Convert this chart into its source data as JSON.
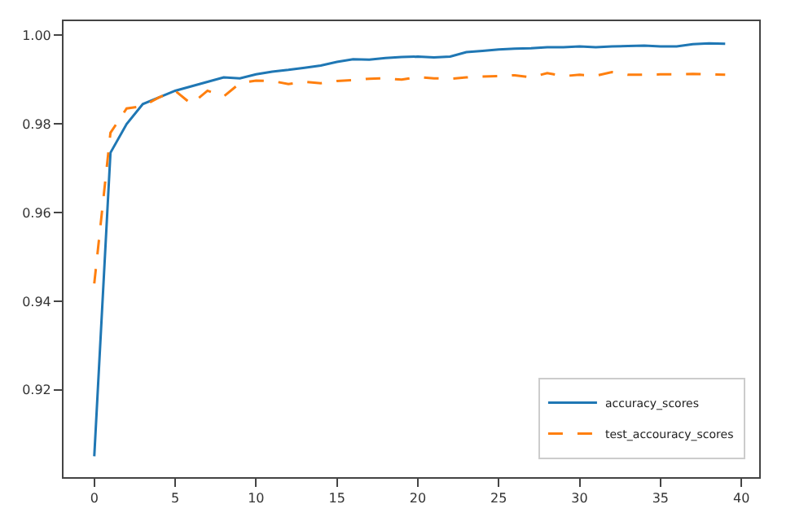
{
  "chart_data": {
    "type": "line",
    "x": [
      0,
      1,
      2,
      3,
      4,
      5,
      6,
      7,
      8,
      9,
      10,
      11,
      12,
      13,
      14,
      15,
      16,
      17,
      18,
      19,
      20,
      21,
      22,
      23,
      24,
      25,
      26,
      27,
      28,
      29,
      30,
      31,
      32,
      33,
      34,
      35,
      36,
      37,
      38,
      39
    ],
    "series": [
      {
        "name": "accuracy_scores",
        "color": "#1f77b4",
        "line_style": "solid",
        "values": [
          0.905,
          0.9735,
          0.98,
          0.9845,
          0.986,
          0.9875,
          0.9885,
          0.9895,
          0.9905,
          0.9903,
          0.9912,
          0.9918,
          0.9922,
          0.9927,
          0.9932,
          0.994,
          0.9946,
          0.9945,
          0.9949,
          0.9951,
          0.9952,
          0.995,
          0.9952,
          0.9962,
          0.9965,
          0.9968,
          0.997,
          0.9971,
          0.9973,
          0.9973,
          0.9975,
          0.9973,
          0.9975,
          0.9976,
          0.9977,
          0.9975,
          0.9975,
          0.998,
          0.9982,
          0.9981
        ]
      },
      {
        "name": "test_accouracy_scores",
        "color": "#ff7f0e",
        "line_style": "dashed",
        "values": [
          0.944,
          0.978,
          0.9835,
          0.984,
          0.986,
          0.9875,
          0.9845,
          0.9875,
          0.9862,
          0.9892,
          0.9898,
          0.9897,
          0.989,
          0.9895,
          0.9892,
          0.9897,
          0.9899,
          0.9902,
          0.9903,
          0.99,
          0.9906,
          0.9903,
          0.9902,
          0.9905,
          0.9907,
          0.9908,
          0.991,
          0.9905,
          0.9915,
          0.9908,
          0.9911,
          0.9909,
          0.9917,
          0.9911,
          0.9911,
          0.9912,
          0.9912,
          0.9913,
          0.9912,
          0.9911
        ]
      }
    ],
    "xlim": [
      -1.9,
      41.1
    ],
    "ylim": [
      0.9003,
      1.0032
    ],
    "xticks": [
      0,
      5,
      10,
      15,
      20,
      25,
      30,
      35,
      40
    ],
    "yticks": [
      {
        "value": 0.92,
        "label": "0.92"
      },
      {
        "value": 0.94,
        "label": "0.94"
      },
      {
        "value": 0.96,
        "label": "0.96"
      },
      {
        "value": 0.98,
        "label": "0.98"
      },
      {
        "value": 1.0,
        "label": "1.00"
      }
    ],
    "legend": "bottom right",
    "grid": false,
    "marker": "none"
  }
}
